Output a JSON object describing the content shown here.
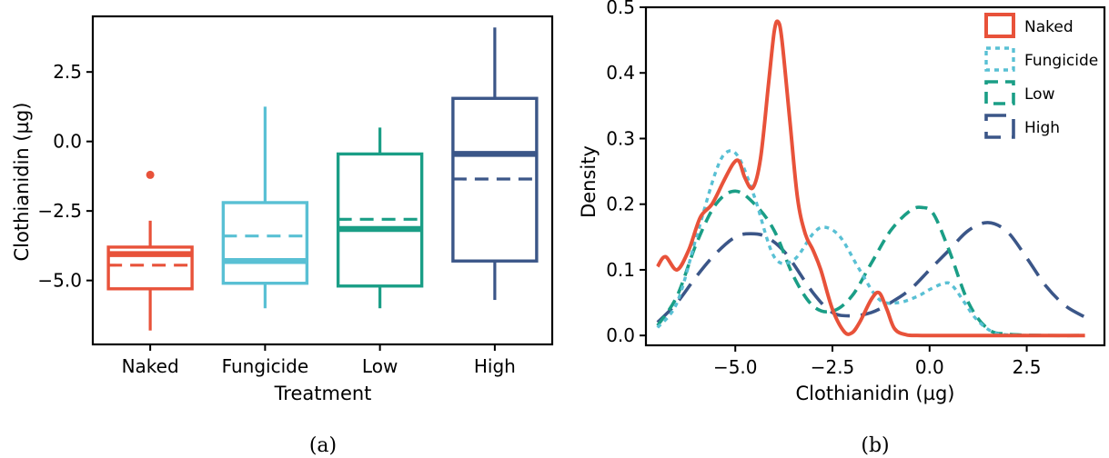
{
  "captions": [
    "(a)",
    "(b)"
  ],
  "colors": {
    "Naked": "#e8523a",
    "Fungicide": "#59c0d4",
    "Low": "#1a9e86",
    "High": "#3b5688"
  },
  "chart_data": [
    {
      "type": "box",
      "title": "",
      "xlabel": "Treatment",
      "ylabel": "Clothianidin (µg)",
      "categories": [
        "Naked",
        "Fungicide",
        "Low",
        "High"
      ],
      "ylim": [
        -7.3,
        4.5
      ],
      "yticks": [
        -5.0,
        -2.5,
        0.0,
        2.5
      ],
      "ytick_labels": [
        "−5.0",
        "−2.5",
        "0.0",
        "2.5"
      ],
      "boxes": [
        {
          "name": "Naked",
          "whisker_low": -6.8,
          "q1": -5.3,
          "median": -4.05,
          "q3": -3.8,
          "whisker_high": -2.85,
          "mean": -4.45,
          "outliers": [
            -1.2
          ]
        },
        {
          "name": "Fungicide",
          "whisker_low": -6.0,
          "q1": -5.1,
          "median": -4.3,
          "q3": -2.2,
          "whisker_high": 1.25,
          "mean": -3.4,
          "outliers": []
        },
        {
          "name": "Low",
          "whisker_low": -6.0,
          "q1": -5.2,
          "median": -3.15,
          "q3": -0.45,
          "whisker_high": 0.5,
          "mean": -2.8,
          "outliers": []
        },
        {
          "name": "High",
          "whisker_low": -5.7,
          "q1": -4.3,
          "median": -0.45,
          "q3": 1.55,
          "whisker_high": 4.1,
          "mean": -1.35,
          "outliers": []
        }
      ]
    },
    {
      "type": "line",
      "title": "",
      "xlabel": "Clothianidin (µg)",
      "ylabel": "Density",
      "xlim": [
        -7.3,
        4.5
      ],
      "ylim": [
        -0.015,
        0.5
      ],
      "xticks": [
        -5.0,
        -2.5,
        0.0,
        2.5
      ],
      "xtick_labels": [
        "−5.0",
        "−2.5",
        "0.0",
        "2.5"
      ],
      "yticks": [
        0.0,
        0.1,
        0.2,
        0.3,
        0.4,
        0.5
      ],
      "ytick_labels": [
        "0.0",
        "0.1",
        "0.2",
        "0.3",
        "0.4",
        "0.5"
      ],
      "legend_position": "top-right",
      "series": [
        {
          "name": "Naked",
          "dash": "solid",
          "x": [
            -7.0,
            -6.8,
            -6.5,
            -6.2,
            -5.9,
            -5.6,
            -5.3,
            -5.05,
            -4.9,
            -4.75,
            -4.55,
            -4.35,
            -4.15,
            -4.0,
            -3.9,
            -3.8,
            -3.6,
            -3.4,
            -3.2,
            -3.0,
            -2.8,
            -2.5,
            -2.2,
            -2.0,
            -1.8,
            -1.5,
            -1.3,
            -1.1,
            -0.9,
            -0.6,
            -0.2,
            1.0,
            4.0
          ],
          "y": [
            0.105,
            0.12,
            0.1,
            0.13,
            0.18,
            0.2,
            0.235,
            0.262,
            0.265,
            0.24,
            0.225,
            0.27,
            0.38,
            0.462,
            0.478,
            0.45,
            0.33,
            0.21,
            0.155,
            0.13,
            0.1,
            0.04,
            0.006,
            0.004,
            0.02,
            0.055,
            0.065,
            0.04,
            0.01,
            0.001,
            0.0,
            0.0,
            0.0
          ]
        },
        {
          "name": "Fungicide",
          "dash": "dotted",
          "x": [
            -7.0,
            -6.5,
            -6.0,
            -5.5,
            -5.2,
            -4.9,
            -4.5,
            -4.0,
            -3.5,
            -3.0,
            -2.7,
            -2.3,
            -1.8,
            -1.3,
            -0.8,
            -0.3,
            0.0,
            0.4,
            0.6,
            0.9,
            1.2,
            1.6,
            2.0,
            3.0,
            4.0
          ],
          "y": [
            0.012,
            0.05,
            0.15,
            0.25,
            0.28,
            0.27,
            0.21,
            0.12,
            0.115,
            0.155,
            0.165,
            0.15,
            0.1,
            0.055,
            0.05,
            0.06,
            0.07,
            0.08,
            0.075,
            0.05,
            0.025,
            0.006,
            0.001,
            0.0,
            0.0
          ]
        },
        {
          "name": "Low",
          "dash": "dashed",
          "x": [
            -7.0,
            -6.5,
            -6.0,
            -5.5,
            -5.0,
            -4.5,
            -4.0,
            -3.5,
            -3.0,
            -2.5,
            -2.0,
            -1.5,
            -1.0,
            -0.5,
            -0.2,
            0.1,
            0.5,
            1.0,
            1.5,
            2.0,
            3.0,
            4.0
          ],
          "y": [
            0.015,
            0.06,
            0.14,
            0.2,
            0.22,
            0.2,
            0.16,
            0.09,
            0.045,
            0.037,
            0.06,
            0.11,
            0.16,
            0.19,
            0.195,
            0.185,
            0.13,
            0.05,
            0.01,
            0.002,
            0.0,
            0.0
          ]
        },
        {
          "name": "High",
          "dash": "long-dashed",
          "x": [
            -7.0,
            -6.5,
            -6.0,
            -5.5,
            -5.0,
            -4.6,
            -4.2,
            -3.7,
            -3.0,
            -2.5,
            -2.0,
            -1.5,
            -1.0,
            -0.5,
            0.0,
            0.5,
            1.0,
            1.5,
            2.0,
            2.5,
            3.0,
            3.5,
            4.0
          ],
          "y": [
            0.02,
            0.05,
            0.09,
            0.125,
            0.15,
            0.155,
            0.15,
            0.125,
            0.065,
            0.035,
            0.03,
            0.035,
            0.05,
            0.07,
            0.1,
            0.13,
            0.16,
            0.172,
            0.158,
            0.118,
            0.075,
            0.045,
            0.028
          ]
        }
      ]
    }
  ]
}
